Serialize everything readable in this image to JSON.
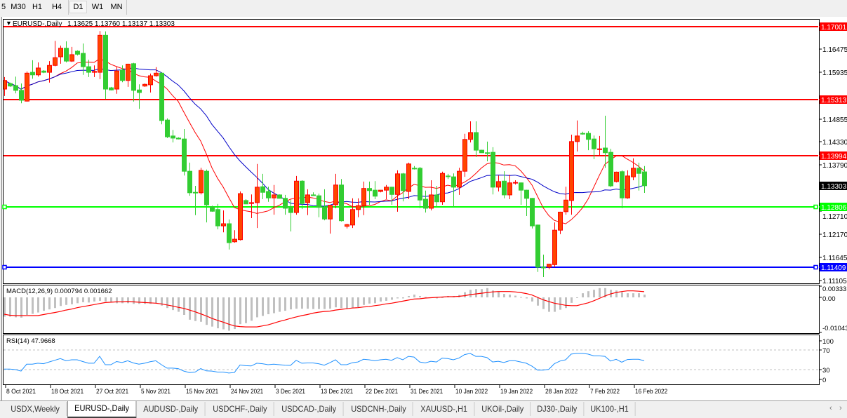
{
  "toolbar": {
    "timeframes": [
      "5",
      "M30",
      "H1",
      "H4",
      "D1",
      "W1",
      "MN"
    ],
    "selected": "D1"
  },
  "chart": {
    "symbol_label": "EURUSD-,Daily",
    "ohlc_label": "1.13625 1.13760 1.13137 1.13303",
    "macd_label": "MACD(12,26,9) 0.000794 0.001662",
    "rsi_label": "RSI(14) 47.9668",
    "current_price": "1.13303",
    "colors": {
      "up": "#ff4500",
      "up_border": "#ff0000",
      "down": "#32cd32",
      "ma_fast": "#ff0000",
      "ma_slow": "#0000c8",
      "macd_hist": "#c0c0c0",
      "macd_signal": "#ff0000",
      "rsi": "#1e90ff"
    }
  },
  "chart_data": {
    "type": "candlestick",
    "price_ticks": [
      "1.16475",
      "1.15935",
      "1.14855",
      "1.14330",
      "1.13790",
      "1.12710",
      "1.12170",
      "1.11645",
      "1.11105"
    ],
    "levels": [
      {
        "label": "1.17001",
        "price": 1.17001,
        "color": "#ff0000"
      },
      {
        "label": "1.15313",
        "price": 1.15313,
        "color": "#ff0000"
      },
      {
        "label": "1.13994",
        "price": 1.13994,
        "color": "#ff0000"
      },
      {
        "label": "1.12806",
        "price": 1.12806,
        "color": "#00ff00"
      },
      {
        "label": "1.11409",
        "price": 1.11409,
        "color": "#0000ff"
      }
    ],
    "date_labels": [
      "8 Oct 2021",
      "18 Oct 2021",
      "27 Oct 2021",
      "5 Nov 2021",
      "15 Nov 2021",
      "24 Nov 2021",
      "3 Dec 2021",
      "13 Dec 2021",
      "22 Dec 2021",
      "31 Dec 2021",
      "10 Jan 2022",
      "19 Jan 2022",
      "28 Jan 2022",
      "7 Feb 2022",
      "16 Feb 2022"
    ],
    "candles_ohlc": [
      [
        1.1555,
        1.1583,
        1.1539,
        1.1575
      ],
      [
        1.1568,
        1.157,
        1.156,
        1.1562
      ],
      [
        1.1563,
        1.1584,
        1.1545,
        1.1552
      ],
      [
        1.1552,
        1.1568,
        1.1522,
        1.1529
      ],
      [
        1.1527,
        1.1596,
        1.1526,
        1.1592
      ],
      [
        1.1594,
        1.1622,
        1.1579,
        1.1588
      ],
      [
        1.1588,
        1.1617,
        1.1584,
        1.1604
      ],
      [
        1.1597,
        1.1599,
        1.1592,
        1.1594
      ],
      [
        1.1594,
        1.162,
        1.157,
        1.161
      ],
      [
        1.161,
        1.1667,
        1.1608,
        1.1628
      ],
      [
        1.163,
        1.1656,
        1.1614,
        1.165
      ],
      [
        1.165,
        1.1666,
        1.1617,
        1.162
      ],
      [
        1.162,
        1.1653,
        1.1618,
        1.1635
      ],
      [
        1.1643,
        1.1645,
        1.1633,
        1.1636
      ],
      [
        1.1638,
        1.1661,
        1.1588,
        1.1607
      ],
      [
        1.1607,
        1.1623,
        1.1583,
        1.1594
      ],
      [
        1.1594,
        1.161,
        1.1583,
        1.1596
      ],
      [
        1.1594,
        1.169,
        1.1578,
        1.168
      ],
      [
        1.168,
        1.1689,
        1.1532,
        1.1555
      ],
      [
        1.1558,
        1.156,
        1.1552,
        1.1553
      ],
      [
        1.1555,
        1.1607,
        1.1544,
        1.1597
      ],
      [
        1.1599,
        1.161,
        1.1571,
        1.1575
      ],
      [
        1.1575,
        1.1614,
        1.156,
        1.1613
      ],
      [
        1.1614,
        1.1616,
        1.1526,
        1.1552
      ],
      [
        1.1553,
        1.1566,
        1.1509,
        1.1547
      ],
      [
        1.1562,
        1.1568,
        1.156,
        1.1566
      ],
      [
        1.1565,
        1.1591,
        1.1547,
        1.1586
      ],
      [
        1.1586,
        1.1606,
        1.1584,
        1.1592
      ],
      [
        1.1592,
        1.1594,
        1.1473,
        1.1482
      ],
      [
        1.1483,
        1.1487,
        1.1441,
        1.1444
      ],
      [
        1.1446,
        1.146,
        1.1431,
        1.1441
      ],
      [
        1.1441,
        1.1443,
        1.1438,
        1.1439
      ],
      [
        1.1439,
        1.1462,
        1.1354,
        1.1364
      ],
      [
        1.1364,
        1.1384,
        1.1307,
        1.1314
      ],
      [
        1.1315,
        1.133,
        1.1262,
        1.1314
      ],
      [
        1.1314,
        1.1372,
        1.131,
        1.1366
      ],
      [
        1.1364,
        1.1368,
        1.1245,
        1.1286
      ],
      [
        1.1281,
        1.1284,
        1.127,
        1.1271
      ],
      [
        1.1275,
        1.1288,
        1.1229,
        1.1237
      ],
      [
        1.1237,
        1.1273,
        1.1222,
        1.1242
      ],
      [
        1.1242,
        1.1252,
        1.1182,
        1.1198
      ],
      [
        1.12,
        1.1227,
        1.1198,
        1.1206
      ],
      [
        1.1205,
        1.1317,
        1.1203,
        1.1312
      ],
      [
        1.1296,
        1.1299,
        1.1288,
        1.1288
      ],
      [
        1.1289,
        1.131,
        1.1255,
        1.1291
      ],
      [
        1.1291,
        1.1381,
        1.1232,
        1.1327
      ],
      [
        1.1328,
        1.1358,
        1.1299,
        1.1315
      ],
      [
        1.1317,
        1.1328,
        1.1293,
        1.1302
      ],
      [
        1.1302,
        1.1332,
        1.1263,
        1.1309
      ],
      [
        1.1309,
        1.131,
        1.1301,
        1.1301
      ],
      [
        1.1301,
        1.1309,
        1.1263,
        1.1278
      ],
      [
        1.1281,
        1.1297,
        1.1224,
        1.1268
      ],
      [
        1.1268,
        1.1353,
        1.1263,
        1.1341
      ],
      [
        1.1341,
        1.1343,
        1.1276,
        1.1289
      ],
      [
        1.1291,
        1.1322,
        1.1262,
        1.1309
      ],
      [
        1.1309,
        1.1315,
        1.1307,
        1.1308
      ],
      [
        1.1307,
        1.1312,
        1.1257,
        1.128
      ],
      [
        1.1281,
        1.1322,
        1.125,
        1.1253
      ],
      [
        1.1253,
        1.1286,
        1.1219,
        1.1285
      ],
      [
        1.1286,
        1.1358,
        1.1278,
        1.1332
      ],
      [
        1.1332,
        1.1346,
        1.1247,
        1.1249
      ],
      [
        1.1236,
        1.1242,
        1.1231,
        1.124
      ],
      [
        1.1239,
        1.1301,
        1.1232,
        1.1275
      ],
      [
        1.1275,
        1.1301,
        1.1257,
        1.1284
      ],
      [
        1.1284,
        1.134,
        1.1262,
        1.1324
      ],
      [
        1.1324,
        1.134,
        1.1286,
        1.1319
      ],
      [
        1.132,
        1.1341,
        1.1299,
        1.1306
      ],
      [
        1.1317,
        1.132,
        1.1315,
        1.132
      ],
      [
        1.132,
        1.1332,
        1.1299,
        1.1327
      ],
      [
        1.1327,
        1.1328,
        1.1286,
        1.131
      ],
      [
        1.131,
        1.1366,
        1.127,
        1.1358
      ],
      [
        1.1358,
        1.136,
        1.1294,
        1.1319
      ],
      [
        1.1317,
        1.1384,
        1.1299,
        1.1381
      ],
      [
        1.1371,
        1.1376,
        1.1368,
        1.137
      ],
      [
        1.1371,
        1.1374,
        1.1278,
        1.1297
      ],
      [
        1.1299,
        1.1319,
        1.1268,
        1.1278
      ],
      [
        1.1278,
        1.1343,
        1.1273,
        1.1309
      ],
      [
        1.1309,
        1.133,
        1.128,
        1.1293
      ],
      [
        1.1293,
        1.1363,
        1.1286,
        1.1359
      ],
      [
        1.1353,
        1.1358,
        1.1346,
        1.1352
      ],
      [
        1.1351,
        1.1359,
        1.1281,
        1.1327
      ],
      [
        1.1327,
        1.1372,
        1.1309,
        1.1364
      ],
      [
        1.1364,
        1.1451,
        1.1351,
        1.1438
      ],
      [
        1.1438,
        1.148,
        1.1431,
        1.1454
      ],
      [
        1.1454,
        1.148,
        1.1397,
        1.1413
      ],
      [
        1.1413,
        1.1414,
        1.1407,
        1.1407
      ],
      [
        1.1407,
        1.1433,
        1.1387,
        1.1406
      ],
      [
        1.1408,
        1.142,
        1.131,
        1.1327
      ],
      [
        1.1327,
        1.1354,
        1.1317,
        1.134
      ],
      [
        1.1341,
        1.1364,
        1.1301,
        1.1309
      ],
      [
        1.1309,
        1.1356,
        1.1299,
        1.1337
      ],
      [
        1.1337,
        1.1343,
        1.1333,
        1.1338
      ],
      [
        1.1337,
        1.1338,
        1.1286,
        1.132
      ],
      [
        1.132,
        1.1321,
        1.126,
        1.1301
      ],
      [
        1.1301,
        1.1302,
        1.1231,
        1.1237
      ],
      [
        1.1239,
        1.124,
        1.113,
        1.1141
      ],
      [
        1.1141,
        1.117,
        1.1118,
        1.114
      ],
      [
        1.1141,
        1.1149,
        1.1136,
        1.1148
      ],
      [
        1.1147,
        1.1245,
        1.1141,
        1.1227
      ],
      [
        1.1227,
        1.127,
        1.1218,
        1.1269
      ],
      [
        1.127,
        1.1328,
        1.1263,
        1.1297
      ],
      [
        1.1296,
        1.1449,
        1.1263,
        1.1433
      ],
      [
        1.1433,
        1.1482,
        1.141,
        1.1446
      ],
      [
        1.1452,
        1.1456,
        1.1449,
        1.1451
      ],
      [
        1.1452,
        1.1457,
        1.1413,
        1.1438
      ],
      [
        1.1439,
        1.1447,
        1.1392,
        1.1416
      ],
      [
        1.1415,
        1.1446,
        1.1399,
        1.1416
      ],
      [
        1.1418,
        1.1493,
        1.1372,
        1.1407
      ],
      [
        1.1408,
        1.1416,
        1.1327,
        1.133
      ],
      [
        1.134,
        1.1363,
        1.1338,
        1.1362
      ],
      [
        1.1363,
        1.1366,
        1.1278,
        1.1302
      ],
      [
        1.1302,
        1.1366,
        1.13,
        1.1353
      ],
      [
        1.1351,
        1.1394,
        1.1343,
        1.1371
      ],
      [
        1.1371,
        1.1384,
        1.1319,
        1.1359
      ],
      [
        1.13625,
        1.1376,
        1.13137,
        1.13303
      ]
    ],
    "macd": {
      "axis_labels": [
        "0.003331",
        "0.00",
        "-0.01043"
      ],
      "axis_values": [
        0.003331,
        0,
        -0.01043
      ],
      "histogram": [
        -0.0056,
        -0.0056,
        -0.0058,
        -0.0059,
        -0.0051,
        -0.0048,
        -0.0044,
        -0.0039,
        -0.0035,
        -0.0031,
        -0.0025,
        -0.0022,
        -0.002,
        -0.0017,
        -0.0014,
        -0.0015,
        -0.0012,
        -0.001,
        -0.0012,
        -0.0015,
        -0.0017,
        -0.0017,
        -0.0017,
        -0.0019,
        -0.0019,
        -0.0019,
        -0.0019,
        -0.0017,
        -0.0024,
        -0.0031,
        -0.0037,
        -0.0042,
        -0.0051,
        -0.0065,
        -0.0069,
        -0.0071,
        -0.008,
        -0.0085,
        -0.009,
        -0.0093,
        -0.0097,
        -0.0092,
        -0.0078,
        -0.0075,
        -0.0068,
        -0.0058,
        -0.0054,
        -0.0049,
        -0.0046,
        -0.0042,
        -0.0039,
        -0.0035,
        -0.0033,
        -0.0033,
        -0.0033,
        -0.0034,
        -0.0034,
        -0.0034,
        -0.0033,
        -0.0029,
        -0.0031,
        -0.0033,
        -0.0031,
        -0.0029,
        -0.0022,
        -0.0018,
        -0.0017,
        -0.0012,
        -0.001,
        -0.0007,
        -0.0003,
        -0.0003,
        0.0004,
        0.0008,
        0.0004,
        0.0001,
        0.0,
        -0.0003,
        0.0,
        0.0004,
        0.0004,
        0.0007,
        0.0015,
        0.0022,
        0.0024,
        0.0024,
        0.0027,
        0.002,
        0.0017,
        0.001,
        0.0008,
        0.0005,
        0.0001,
        -0.0003,
        -0.0012,
        -0.0024,
        -0.0034,
        -0.0042,
        -0.0042,
        -0.0036,
        -0.0031,
        -0.0016,
        -0.0001,
        0.0012,
        0.0018,
        0.0022,
        0.0027,
        0.0027,
        0.0022,
        0.002,
        0.0015,
        0.0012,
        0.0012,
        0.0012,
        0.000794
      ],
      "signal": [
        -0.0049,
        -0.0052,
        -0.0053,
        -0.0053,
        -0.0053,
        -0.0053,
        -0.0053,
        -0.005,
        -0.0047,
        -0.0044,
        -0.0041,
        -0.0037,
        -0.0034,
        -0.003,
        -0.0027,
        -0.0024,
        -0.0021,
        -0.0018,
        -0.0015,
        -0.0014,
        -0.0013,
        -0.0013,
        -0.0012,
        -0.0013,
        -0.0014,
        -0.0015,
        -0.0016,
        -0.0017,
        -0.0019,
        -0.0022,
        -0.0025,
        -0.0029,
        -0.0032,
        -0.0037,
        -0.0042,
        -0.0048,
        -0.0054,
        -0.0061,
        -0.0067,
        -0.0072,
        -0.0078,
        -0.0083,
        -0.0085,
        -0.0086,
        -0.0086,
        -0.0086,
        -0.0083,
        -0.008,
        -0.0075,
        -0.007,
        -0.0066,
        -0.0061,
        -0.0057,
        -0.0053,
        -0.005,
        -0.0046,
        -0.0043,
        -0.0041,
        -0.004,
        -0.0037,
        -0.0035,
        -0.0033,
        -0.0031,
        -0.003,
        -0.0028,
        -0.0027,
        -0.0024,
        -0.0022,
        -0.0019,
        -0.0017,
        -0.0014,
        -0.0011,
        -0.0008,
        -0.0005,
        -0.0004,
        -0.0002,
        -0.0001,
        0.0,
        0.0001,
        0.0002,
        0.0002,
        0.0003,
        0.0005,
        0.0008,
        0.001,
        0.0012,
        0.0014,
        0.0016,
        0.0017,
        0.0017,
        0.0017,
        0.0016,
        0.0014,
        0.0011,
        0.0007,
        0.0,
        -0.0007,
        -0.0012,
        -0.0017,
        -0.002,
        -0.0023,
        -0.0024,
        -0.0024,
        -0.002,
        -0.0016,
        -0.001,
        -0.0003,
        0.0004,
        0.001,
        0.0014,
        0.0017,
        0.0019,
        0.0019,
        0.0018,
        0.001662
      ]
    },
    "rsi": {
      "axis_labels": [
        "100",
        "70",
        "30",
        "0"
      ],
      "axis_values": [
        100,
        70,
        30,
        0
      ],
      "levels": [
        70,
        30
      ],
      "values": [
        31,
        31,
        30,
        27,
        41,
        41,
        43,
        42,
        45.5,
        49,
        52.5,
        48,
        50,
        50,
        46.5,
        43,
        43,
        57,
        40,
        40,
        46.5,
        44.5,
        48,
        43.5,
        41,
        43,
        46,
        48,
        40,
        33,
        33,
        32,
        27,
        24,
        25,
        32,
        27.5,
        27,
        25,
        25,
        23,
        24,
        39.5,
        38,
        37.5,
        43,
        42,
        40,
        41,
        40,
        39,
        38.5,
        49,
        43,
        43.5,
        43.5,
        42,
        39,
        44,
        50,
        40,
        40,
        44,
        45.5,
        51,
        50,
        48,
        50,
        51,
        49,
        54.5,
        50,
        57,
        55.5,
        45.5,
        43.5,
        47,
        45.5,
        53.5,
        52.5,
        50,
        53.5,
        60.5,
        63,
        57,
        57,
        54.5,
        45.5,
        47,
        44.5,
        48,
        48,
        45.5,
        43,
        37,
        29,
        29,
        30.5,
        42,
        47.5,
        50,
        61.5,
        63,
        63,
        61.5,
        58,
        58,
        57,
        47.5,
        51,
        45,
        50.5,
        51,
        51,
        47.9668
      ]
    }
  },
  "tabs": {
    "items": [
      "USDX,Weekly",
      "EURUSD-,Daily",
      "AUDUSD-,Daily",
      "USDCHF-,Daily",
      "USDCAD-,Daily",
      "USDCNH-,Daily",
      "XAUUSD-,H1",
      "UKOil-,Daily",
      "DJ30-,Daily",
      "UK100-,H1"
    ],
    "active": "EURUSD-,Daily",
    "scroll_left": "‹",
    "scroll_right": "›"
  }
}
